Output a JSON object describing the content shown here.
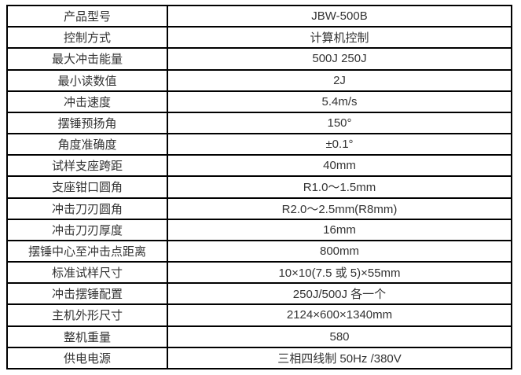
{
  "page": {
    "background_color": "#ffffff",
    "border_color": "#000000",
    "text_color": "#333333"
  },
  "spec_table": {
    "rows": [
      {
        "label": "产品型号",
        "value": "JBW-500B"
      },
      {
        "label": "控制方式",
        "value": "计算机控制"
      },
      {
        "label": "最大冲击能量",
        "value": "500J 250J"
      },
      {
        "label": "最小读数值",
        "value": "2J"
      },
      {
        "label": "冲击速度",
        "value": "5.4m/s"
      },
      {
        "label": "摆锤预扬角",
        "value": "150°"
      },
      {
        "label": "角度准确度",
        "value": "±0.1°"
      },
      {
        "label": "试样支座跨距",
        "value": "40mm"
      },
      {
        "label": "支座钳口圆角",
        "value": "R1.0～1.5mm"
      },
      {
        "label": "冲击刀刃圆角",
        "value": "R2.0～2.5mm(R8mm)"
      },
      {
        "label": "冲击刀刃厚度",
        "value": "16mm"
      },
      {
        "label": "摆锤中心至冲击点距离",
        "value": "800mm"
      },
      {
        "label": "标准试样尺寸",
        "value": "10×10(7.5 或 5)×55mm"
      },
      {
        "label": "冲击摆锤配置",
        "value": "250J/500J 各一个"
      },
      {
        "label": "主机外形尺寸",
        "value": "2124×600×1340mm"
      },
      {
        "label": "整机重量",
        "value": "580"
      },
      {
        "label": "供电电源",
        "value": "三相四线制 50Hz /380V"
      }
    ]
  }
}
